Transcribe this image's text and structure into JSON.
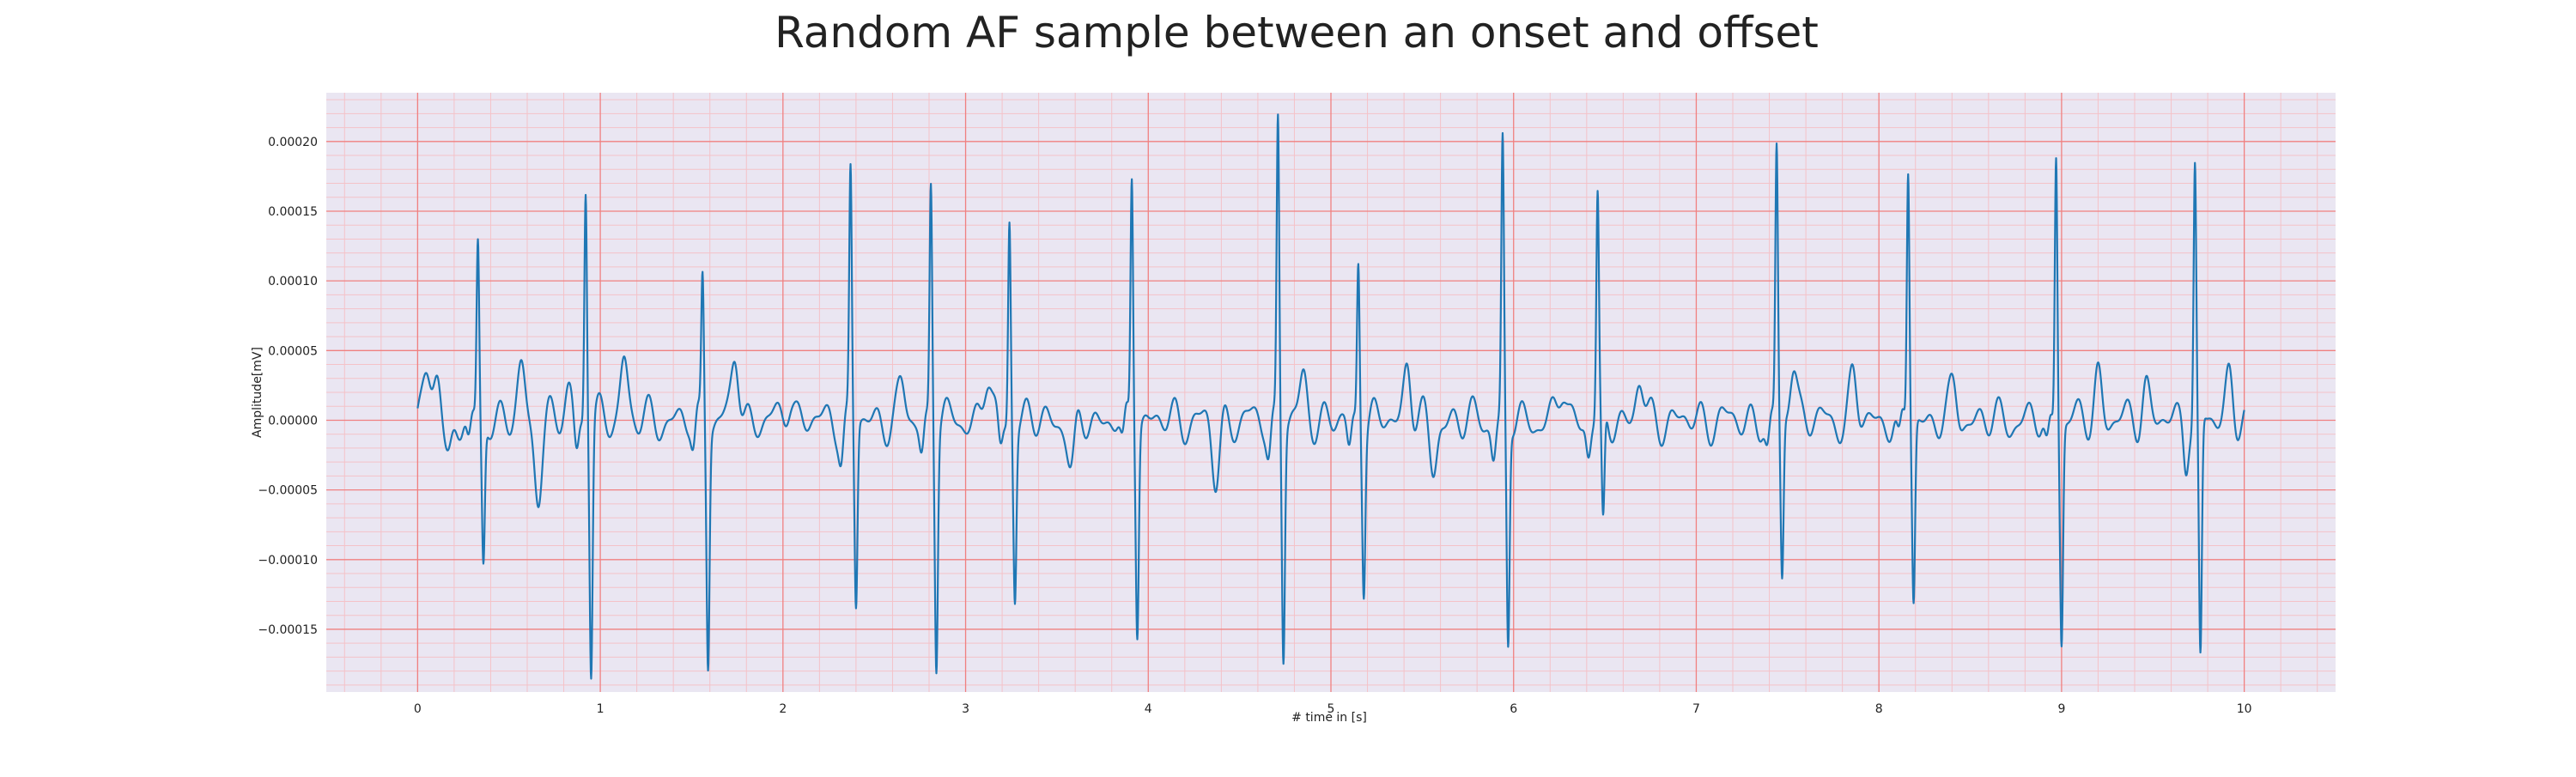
{
  "chart_data": {
    "type": "line",
    "title": "Random AF sample between an onset and offset",
    "xlabel": "# time in [s]",
    "ylabel": "Amplitude[mV]",
    "xlim": [
      -0.5,
      10.5
    ],
    "ylim": [
      -0.000195,
      0.000235
    ],
    "xticks": [
      0,
      1,
      2,
      3,
      4,
      5,
      6,
      7,
      8,
      9,
      10
    ],
    "xtick_labels": [
      "0",
      "1",
      "2",
      "3",
      "4",
      "5",
      "6",
      "7",
      "8",
      "9",
      "10"
    ],
    "yticks": [
      -0.00015,
      -0.0001,
      -5e-05,
      0,
      5e-05,
      0.0001,
      0.00015,
      0.0002
    ],
    "ytick_labels": [
      "−0.00015",
      "−0.00010",
      "−0.00005",
      "0.00000",
      "0.00005",
      "0.00010",
      "0.00015",
      "0.00020"
    ],
    "grid": "major red, minor pink",
    "colors": {
      "line": "#1f77b4",
      "major_grid": "#f08080",
      "minor_grid": "#f4c2c8",
      "background": "#eae6f2"
    },
    "series": [
      {
        "color": "#1f77b4",
        "beats": [
          {
            "t": 0.33,
            "up": 0.000128,
            "down": -0.0001
          },
          {
            "t": 0.92,
            "up": 0.00017,
            "down": -0.000177
          },
          {
            "t": 1.56,
            "up": 0.000104,
            "down": -0.000165
          },
          {
            "t": 2.37,
            "up": 0.000175,
            "down": -0.000132
          },
          {
            "t": 2.81,
            "up": 0.00017,
            "down": -0.000166
          },
          {
            "t": 3.24,
            "up": 0.000148,
            "down": -0.000121
          },
          {
            "t": 3.91,
            "up": 0.000179,
            "down": -0.000143
          },
          {
            "t": 4.71,
            "up": 0.000216,
            "down": -0.000163
          },
          {
            "t": 5.15,
            "up": 0.000117,
            "down": -0.00011
          },
          {
            "t": 5.94,
            "up": 0.000194,
            "down": -0.000162
          },
          {
            "t": 6.46,
            "up": 0.000156,
            "down": -8.4e-05
          },
          {
            "t": 7.44,
            "up": 0.000192,
            "down": -0.000118
          },
          {
            "t": 8.16,
            "up": 0.000183,
            "down": -0.000127
          },
          {
            "t": 8.97,
            "up": 0.000197,
            "down": -0.000154
          },
          {
            "t": 9.73,
            "up": 0.000179,
            "down": -0.000176
          }
        ],
        "baseline_oscillation": [
          {
            "t": 0.05,
            "v": 2.8e-05
          },
          {
            "t": 0.11,
            "v": 3.8e-05
          },
          {
            "t": 0.17,
            "v": -3e-05
          },
          {
            "t": 0.57,
            "v": 3.5e-05
          },
          {
            "t": 0.66,
            "v": -4.9e-05
          },
          {
            "t": 0.83,
            "v": 2.2e-05
          },
          {
            "t": 1.13,
            "v": 4.6e-05
          },
          {
            "t": 1.74,
            "v": 4.7e-05
          },
          {
            "t": 2.04,
            "v": 1.8e-05
          },
          {
            "t": 2.65,
            "v": 2.2e-05
          },
          {
            "t": 3.12,
            "v": 3.3e-05
          },
          {
            "t": 3.58,
            "v": -3.8e-05
          },
          {
            "t": 4.37,
            "v": -4.2e-05
          },
          {
            "t": 4.85,
            "v": 2.8e-05
          },
          {
            "t": 5.42,
            "v": 4.2e-05
          },
          {
            "t": 5.56,
            "v": -3.5e-05
          },
          {
            "t": 6.27,
            "v": 2.5e-05
          },
          {
            "t": 6.69,
            "v": 2.8e-05
          },
          {
            "t": 7.53,
            "v": 4.5e-05
          },
          {
            "t": 7.86,
            "v": 2.8e-05
          },
          {
            "t": 8.41,
            "v": 2.2e-05
          },
          {
            "t": 9.2,
            "v": 3.2e-05
          },
          {
            "t": 9.46,
            "v": 2.5e-05
          },
          {
            "t": 9.92,
            "v": 3.3e-05
          }
        ]
      }
    ]
  }
}
